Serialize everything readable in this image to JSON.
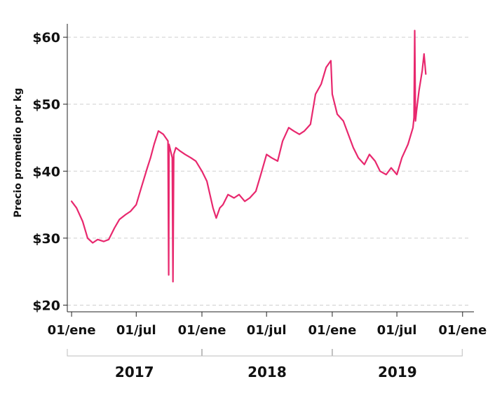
{
  "chart_data": {
    "type": "line",
    "ylabel": "Precio promedio por kg",
    "y_ticks": [
      {
        "value": 20,
        "label": "$20"
      },
      {
        "value": 30,
        "label": "$30"
      },
      {
        "value": 40,
        "label": "$40"
      },
      {
        "value": 50,
        "label": "$50"
      },
      {
        "value": 60,
        "label": "$60"
      }
    ],
    "ylim": [
      19,
      62
    ],
    "xlim": [
      "2016-12-20",
      "2020-01-25"
    ],
    "x_ticks": [
      {
        "value": "2017-01-01",
        "label": "01/ene"
      },
      {
        "value": "2017-07-01",
        "label": "01/jul"
      },
      {
        "value": "2018-01-01",
        "label": "01/ene"
      },
      {
        "value": "2018-07-01",
        "label": "01/jul"
      },
      {
        "value": "2019-01-01",
        "label": "01/ene"
      },
      {
        "value": "2019-07-01",
        "label": "01/jul"
      },
      {
        "value": "2020-01-01",
        "label": "01/ene"
      }
    ],
    "year_groups": [
      {
        "label": "2017",
        "start": "2016-12-20",
        "end": "2017-12-31"
      },
      {
        "label": "2018",
        "start": "2018-01-02",
        "end": "2018-12-31"
      },
      {
        "label": "2019",
        "start": "2019-01-02",
        "end": "2019-12-31"
      }
    ],
    "grid": true,
    "line_color": "#e8286e",
    "series": [
      {
        "x": [
          "2017-01-01",
          "2017-01-15",
          "2017-02-01",
          "2017-02-15",
          "2017-03-01",
          "2017-03-15",
          "2017-04-01",
          "2017-04-15",
          "2017-05-01",
          "2017-05-15",
          "2017-06-01",
          "2017-06-15",
          "2017-07-01",
          "2017-07-15",
          "2017-08-01",
          "2017-08-10",
          "2017-08-20",
          "2017-09-01",
          "2017-09-15",
          "2017-09-28",
          "2017-09-30",
          "2017-10-01",
          "2017-10-10",
          "2017-10-12",
          "2017-10-14",
          "2017-10-20",
          "2017-11-01",
          "2017-11-15",
          "2017-12-01",
          "2017-12-15",
          "2018-01-01",
          "2018-01-15",
          "2018-02-01",
          "2018-02-10",
          "2018-02-20",
          "2018-03-01",
          "2018-03-15",
          "2018-04-01",
          "2018-04-15",
          "2018-05-01",
          "2018-05-15",
          "2018-06-01",
          "2018-06-15",
          "2018-07-01",
          "2018-07-15",
          "2018-08-01",
          "2018-08-15",
          "2018-09-01",
          "2018-09-15",
          "2018-10-01",
          "2018-10-15",
          "2018-11-01",
          "2018-11-15",
          "2018-12-01",
          "2018-12-15",
          "2018-12-28",
          "2019-01-01",
          "2019-01-15",
          "2019-02-01",
          "2019-02-15",
          "2019-03-01",
          "2019-03-15",
          "2019-04-01",
          "2019-04-15",
          "2019-05-01",
          "2019-05-15",
          "2019-06-01",
          "2019-06-15",
          "2019-07-01",
          "2019-07-15",
          "2019-08-01",
          "2019-08-15",
          "2019-08-18",
          "2019-08-20",
          "2019-08-22",
          "2019-08-25",
          "2019-09-01",
          "2019-09-10",
          "2019-09-15",
          "2019-09-20"
        ],
        "y": [
          35.5,
          34.5,
          32.5,
          30.0,
          29.3,
          29.8,
          29.5,
          29.8,
          31.5,
          32.8,
          33.5,
          34.0,
          35.0,
          37.5,
          40.5,
          42.0,
          44.0,
          46.0,
          45.5,
          44.5,
          24.5,
          44.0,
          42.0,
          23.5,
          42.5,
          43.5,
          43.0,
          42.5,
          42.0,
          41.5,
          40.0,
          38.5,
          34.5,
          33.0,
          34.5,
          35.0,
          36.5,
          36.0,
          36.5,
          35.5,
          36.0,
          37.0,
          39.5,
          42.5,
          42.0,
          41.5,
          44.5,
          46.5,
          46.0,
          45.5,
          46.0,
          47.0,
          51.5,
          53.0,
          55.5,
          56.5,
          51.5,
          48.5,
          47.5,
          45.5,
          43.5,
          42.0,
          41.0,
          42.5,
          41.5,
          40.0,
          39.5,
          40.5,
          39.5,
          42.0,
          44.0,
          46.5,
          48.0,
          61.0,
          47.5,
          49.0,
          52.0,
          55.0,
          57.5,
          54.5
        ]
      }
    ]
  }
}
